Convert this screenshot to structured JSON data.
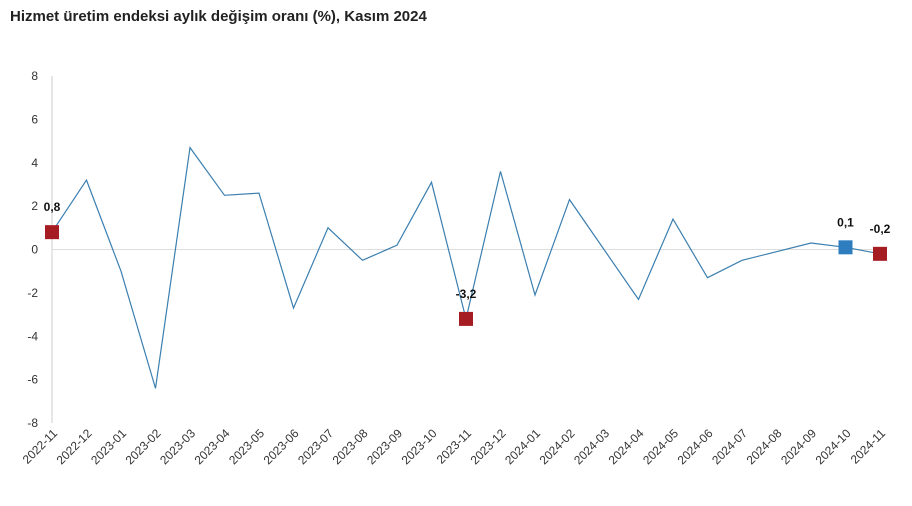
{
  "chart_data": {
    "type": "line",
    "title": "Hizmet üretim endeksi aylık değişim oranı (%), Kasım 2024",
    "xlabel": "",
    "ylabel": "",
    "ylim": [
      -8,
      8
    ],
    "yticks": [
      8,
      6,
      4,
      2,
      0,
      -2,
      -4,
      -6,
      -8
    ],
    "grid": false,
    "legend": "none",
    "categories": [
      "2022-11",
      "2022-12",
      "2023-01",
      "2023-02",
      "2023-03",
      "2023-04",
      "2023-05",
      "2023-06",
      "2023-07",
      "2023-08",
      "2023-09",
      "2023-10",
      "2023-11",
      "2023-12",
      "2024-01",
      "2024-02",
      "2024-03",
      "2024-04",
      "2024-05",
      "2024-06",
      "2024-07",
      "2024-08",
      "2024-09",
      "2024-10",
      "2024-11"
    ],
    "series": [
      {
        "values": [
          0.8,
          3.2,
          -1.0,
          -6.4,
          4.7,
          2.5,
          2.6,
          -2.7,
          1.0,
          -0.5,
          0.2,
          3.1,
          -3.2,
          3.6,
          -2.1,
          2.3,
          0.0,
          -2.3,
          1.4,
          -1.3,
          -0.5,
          -0.1,
          0.3,
          0.1,
          -0.2
        ],
        "color": "#3b7fb0"
      }
    ],
    "highlighted_points": [
      {
        "index": 0,
        "label": "0,8",
        "color": "#a51d23"
      },
      {
        "index": 12,
        "label": "-3,2",
        "color": "#a51d23"
      },
      {
        "index": 23,
        "label": "0,1",
        "color": "#2e7dbf"
      },
      {
        "index": 24,
        "label": "-0,2",
        "color": "#a51d23"
      }
    ],
    "zero_line_color": "#dddddd",
    "axis_color": "#cccccc"
  }
}
